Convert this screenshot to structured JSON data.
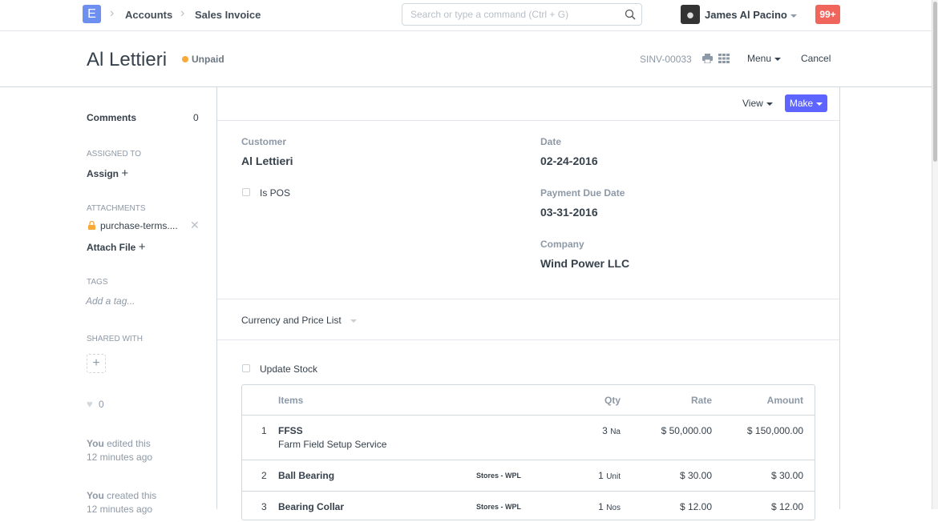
{
  "navbar": {
    "logo": "E",
    "breadcrumbs": [
      "Accounts",
      "Sales Invoice"
    ],
    "search_placeholder": "Search or type a command (Ctrl + G)",
    "user": "James Al Pacino",
    "notifications": "99+"
  },
  "page": {
    "title": "Al Lettieri",
    "status": "Unpaid",
    "status_color": "#f8a937",
    "doc_name": "SINV-00033",
    "menu": "Menu",
    "cancel": "Cancel"
  },
  "sidebar": {
    "comments_label": "Comments",
    "comments_count": "0",
    "assigned_to": "Assigned To",
    "assign": "Assign",
    "attachments": "Attachments",
    "attachment_file": "purchase-terms....",
    "attach_file": "Attach File",
    "tags": "Tags",
    "add_tag": "Add a tag...",
    "shared_with": "Shared With",
    "likes": "0",
    "edited_by": "You",
    "edited_text": "edited this",
    "edited_time": "12 minutes ago",
    "created_by": "You",
    "created_text": "created this",
    "created_time": "12 minutes ago"
  },
  "form": {
    "view": "View",
    "make": "Make",
    "make_color": "#5e64ff",
    "customer_label": "Customer",
    "customer": "Al Lettieri",
    "is_pos": "Is POS",
    "date_label": "Date",
    "date": "02-24-2016",
    "due_label": "Payment Due Date",
    "due": "03-31-2016",
    "company_label": "Company",
    "company": "Wind Power LLC",
    "currency_section": "Currency and Price List",
    "update_stock": "Update Stock"
  },
  "items": {
    "headers": {
      "item": "Items",
      "qty": "Qty",
      "rate": "Rate",
      "amount": "Amount"
    },
    "rows": [
      {
        "idx": "1",
        "item": "FFSS",
        "desc": "Farm Field Setup Service",
        "warehouse": "",
        "qty": "3",
        "uom": "Na",
        "rate": "$ 50,000.00",
        "amount": "$ 150,000.00"
      },
      {
        "idx": "2",
        "item": "Ball Bearing",
        "desc": "",
        "warehouse": "Stores - WPL",
        "qty": "1",
        "uom": "Unit",
        "rate": "$ 30.00",
        "amount": "$ 30.00"
      },
      {
        "idx": "3",
        "item": "Bearing Collar",
        "desc": "",
        "warehouse": "Stores - WPL",
        "qty": "1",
        "uom": "Nos",
        "rate": "$ 12.00",
        "amount": "$ 12.00"
      }
    ]
  }
}
